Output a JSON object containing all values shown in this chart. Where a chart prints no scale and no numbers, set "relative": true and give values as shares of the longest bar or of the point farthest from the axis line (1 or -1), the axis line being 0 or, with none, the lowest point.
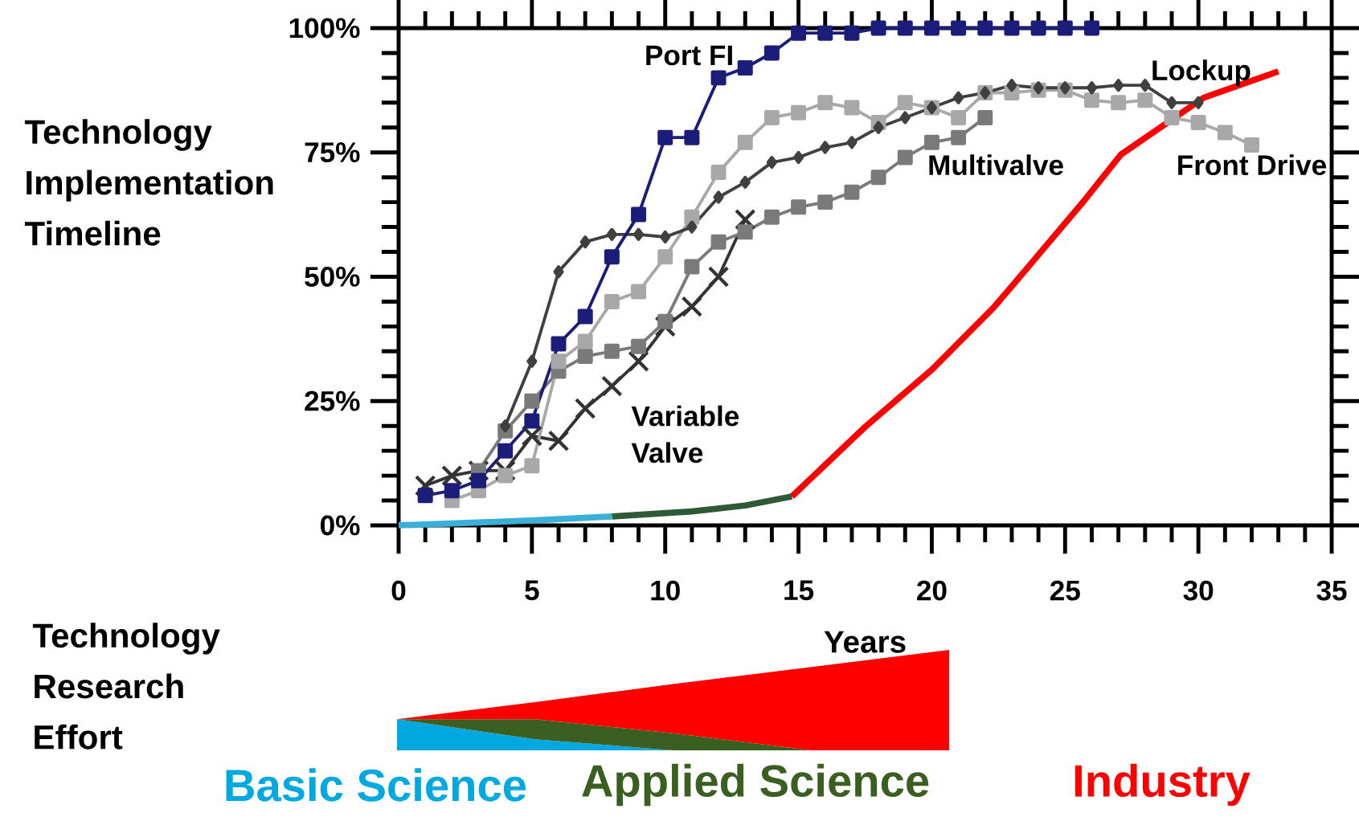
{
  "chart_data": [
    {
      "type": "line",
      "ylabel": "Technology Implementation Timeline",
      "xlabel": "Years",
      "xlim": [
        0,
        35
      ],
      "xticks": [
        0,
        5,
        10,
        15,
        20,
        25,
        30,
        35
      ],
      "ylim": [
        0,
        100
      ],
      "yticks": [
        {
          "value": 0,
          "label": "0%"
        },
        {
          "value": 25,
          "label": "25%"
        },
        {
          "value": 50,
          "label": "50%"
        },
        {
          "value": 75,
          "label": "75%"
        },
        {
          "value": 100,
          "label": "100%"
        }
      ],
      "grid": false,
      "legend": false,
      "line_style": "solid",
      "series": [
        {
          "name": "Port FI",
          "color": "#1c1c7a",
          "marker": "square",
          "x": [
            1,
            2,
            3,
            4,
            5,
            6,
            7,
            8,
            9,
            10,
            11,
            12,
            13,
            14,
            15,
            16,
            17,
            18,
            19,
            20,
            21,
            22,
            23,
            24,
            25,
            26
          ],
          "values": [
            6,
            7,
            9,
            15,
            21,
            36.5,
            42,
            54,
            62.5,
            78,
            78,
            90,
            92,
            95,
            99,
            99,
            99,
            100,
            100,
            100,
            100,
            100,
            100,
            100,
            100,
            100
          ]
        },
        {
          "name": "Lockup",
          "color": "#404040",
          "marker": "diamond",
          "x": [
            4,
            5,
            6,
            7,
            8,
            9,
            10,
            11,
            12,
            13,
            14,
            15,
            16,
            17,
            18,
            19,
            20,
            21,
            22,
            23,
            24,
            25,
            26,
            27,
            28,
            29,
            30
          ],
          "values": [
            20,
            33,
            51,
            57,
            58.5,
            58.5,
            58,
            60,
            66,
            69,
            73,
            74,
            76,
            77,
            80,
            82,
            84,
            86,
            87,
            88.5,
            88,
            88,
            88,
            88.5,
            88.5,
            85,
            85
          ]
        },
        {
          "name": "Front Drive",
          "color": "#a8a8a8",
          "marker": "square",
          "x": [
            2,
            3,
            4,
            5,
            6,
            7,
            8,
            9,
            10,
            11,
            12,
            13,
            14,
            15,
            16,
            17,
            18,
            19,
            20,
            21,
            22,
            23,
            24,
            25,
            26,
            27,
            28,
            29,
            30,
            31,
            32
          ],
          "values": [
            5,
            7,
            10,
            12,
            33,
            37,
            45,
            47,
            54,
            62,
            71,
            77,
            82,
            83,
            85,
            84,
            81,
            85,
            84,
            82,
            87,
            87,
            87.5,
            87.5,
            85.5,
            85,
            85.5,
            82,
            81,
            79,
            76.5
          ]
        },
        {
          "name": "Multivalve",
          "color": "#7a7a7a",
          "marker": "square",
          "x": [
            3,
            4,
            5,
            6,
            7,
            8,
            9,
            10,
            11,
            12,
            13,
            14,
            15,
            16,
            17,
            18,
            19,
            20,
            21,
            22
          ],
          "values": [
            11,
            19,
            25,
            31,
            34,
            35,
            36,
            41,
            52,
            57,
            59,
            62,
            64,
            65,
            67,
            70,
            74,
            77,
            78,
            82
          ]
        },
        {
          "name": "Variable Valve",
          "color": "#333333",
          "marker": "cross",
          "x": [
            1,
            2,
            3,
            4,
            5,
            6,
            7,
            8,
            9,
            10,
            11,
            12,
            13
          ],
          "values": [
            8,
            10,
            11,
            11,
            18,
            17,
            23.5,
            28,
            33,
            40,
            44,
            50,
            61.5
          ]
        },
        {
          "color": "#3ab0d8",
          "marker": "none",
          "x": [
            0,
            5,
            8
          ],
          "values": [
            0,
            1,
            1.8
          ]
        },
        {
          "color": "#2f5a35",
          "marker": "none",
          "x": [
            8,
            11,
            13,
            14.75
          ],
          "values": [
            1.8,
            2.8,
            4,
            5.8
          ]
        },
        {
          "color": "#ff0000",
          "marker": "none",
          "x": [
            14.75,
            17.5,
            20,
            22.3,
            23.1,
            25.7,
            27.1,
            30.2,
            33
          ],
          "values": [
            5.8,
            19.8,
            31.3,
            43.7,
            48.7,
            65.2,
            74.6,
            86,
            91.3
          ]
        }
      ]
    },
    {
      "type": "area",
      "ylabel": "Technology Research Effort",
      "relative": true,
      "stacked": true,
      "legend": "bottom",
      "categories": [
        null,
        null,
        null,
        null,
        null
      ],
      "series": [
        {
          "name": "Basic Science",
          "color": "#00a8e0",
          "values": [
            0.31,
            0.11,
            0,
            null,
            null
          ]
        },
        {
          "name": "Applied Science",
          "color": "#3a5f20",
          "values": [
            0,
            0.2,
            0.17,
            0,
            null
          ]
        },
        {
          "name": "Industry",
          "color": "#ff0000",
          "values": [
            0,
            0.17,
            0.49,
            0.83,
            1
          ]
        }
      ]
    }
  ]
}
